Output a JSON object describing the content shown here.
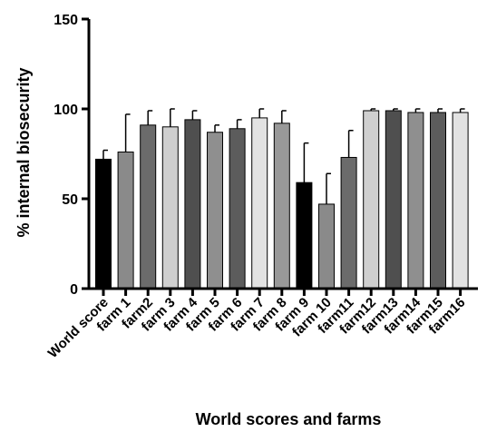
{
  "chart_data": {
    "type": "bar",
    "title": "",
    "xlabel": "World scores and farms",
    "ylabel": "% internal biosecurity",
    "ylim": [
      0,
      150
    ],
    "yticks": [
      0,
      50,
      100,
      150
    ],
    "grid": false,
    "legend": "none",
    "categories": [
      "World score",
      "farm 1",
      "farm2",
      "farm 3",
      "farm 4",
      "farm 5",
      "farm 6",
      "farm 7",
      "farm 8",
      "farm 9",
      "farm 10",
      "farm11",
      "farm12",
      "farm13",
      "farm14",
      "farm15",
      "farm16"
    ],
    "values": [
      72,
      76,
      91,
      90,
      94,
      87,
      89,
      95,
      92,
      59,
      47,
      73,
      99,
      99,
      98,
      98,
      98
    ],
    "errors": [
      5,
      21,
      8,
      10,
      5,
      4,
      5,
      5,
      7,
      22,
      17,
      15,
      1,
      1,
      2,
      2,
      2
    ],
    "colors": [
      "#000000",
      "#8a8a8a",
      "#6b6b6b",
      "#cfcfcf",
      "#4f4f4f",
      "#8f8f8f",
      "#5c5c5c",
      "#e2e2e2",
      "#999999",
      "#000000",
      "#8a8a8a",
      "#6b6b6b",
      "#cfcfcf",
      "#4f4f4f",
      "#8f8f8f",
      "#5c5c5c",
      "#e2e2e2"
    ]
  }
}
